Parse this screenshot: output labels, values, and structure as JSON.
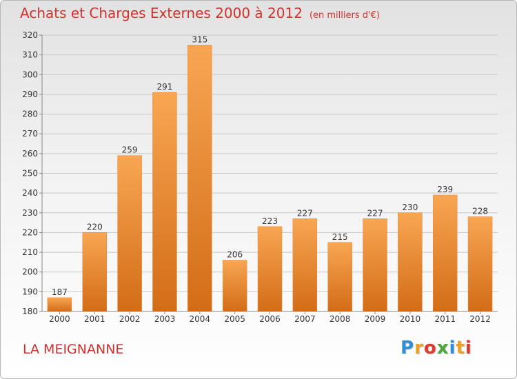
{
  "title": "Achats et Charges Externes 2000 à 2012",
  "unit_note": "(en milliers d'€)",
  "commune": "LA MEIGNANNE",
  "logo": {
    "text": "Proxiti",
    "letters": [
      {
        "ch": "P",
        "color": "#2f8fd6"
      },
      {
        "ch": "r",
        "color": "#f0a020"
      },
      {
        "ch": "o",
        "color": "#e23a2a"
      },
      {
        "ch": "x",
        "color": "#4aa83a"
      },
      {
        "ch": "i",
        "color": "#2f8fd6"
      },
      {
        "ch": "t",
        "color": "#f0a020"
      },
      {
        "ch": "i",
        "color": "#e23a2a"
      }
    ]
  },
  "colors": {
    "bar_top": "#f8a653",
    "bar_bottom": "#d36c17",
    "title": "#d2302d",
    "grid": "#c8c8c8"
  },
  "chart_data": {
    "type": "bar",
    "title": "Achats et Charges Externes 2000 à 2012",
    "subtitle": "(en milliers d'€)",
    "categories": [
      "2000",
      "2001",
      "2002",
      "2003",
      "2004",
      "2005",
      "2006",
      "2007",
      "2008",
      "2009",
      "2010",
      "2011",
      "2012"
    ],
    "values": [
      187,
      220,
      259,
      291,
      315,
      206,
      223,
      227,
      215,
      227,
      230,
      239,
      228
    ],
    "ylim": [
      180,
      320
    ],
    "yticks": [
      180,
      190,
      200,
      210,
      220,
      230,
      240,
      250,
      260,
      270,
      280,
      290,
      300,
      310,
      320
    ],
    "grid": true,
    "xlabel": "",
    "ylabel": ""
  }
}
